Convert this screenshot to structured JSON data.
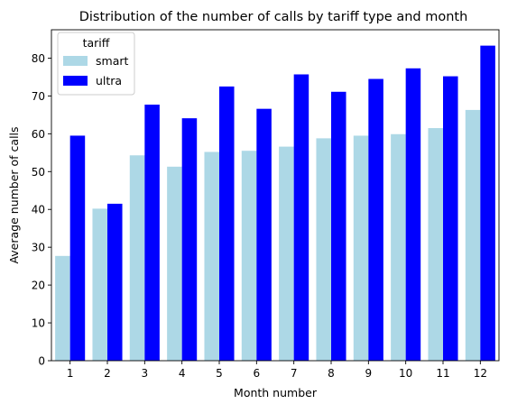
{
  "chart_data": {
    "type": "bar",
    "title": "Distribution of the number of calls by tariff type and month",
    "xlabel": "Month number",
    "ylabel": "Average number of calls",
    "categories": [
      "1",
      "2",
      "3",
      "4",
      "5",
      "6",
      "7",
      "8",
      "9",
      "10",
      "11",
      "12"
    ],
    "yticks": [
      "0",
      "10",
      "20",
      "30",
      "40",
      "50",
      "60",
      "70",
      "80"
    ],
    "ylim": [
      0,
      87.5
    ],
    "grid": false,
    "legend": {
      "title": "tariff",
      "position": "top-left"
    },
    "series": [
      {
        "name": "smart",
        "color": "#add8e6",
        "values": [
          27.7,
          40.2,
          54.3,
          51.3,
          55.2,
          55.5,
          56.6,
          58.8,
          59.5,
          59.9,
          61.5,
          66.3
        ]
      },
      {
        "name": "ultra",
        "color": "#0000ff",
        "values": [
          59.5,
          41.5,
          67.7,
          64.1,
          72.5,
          66.6,
          75.7,
          71.1,
          74.5,
          77.3,
          75.2,
          83.3
        ]
      }
    ]
  }
}
